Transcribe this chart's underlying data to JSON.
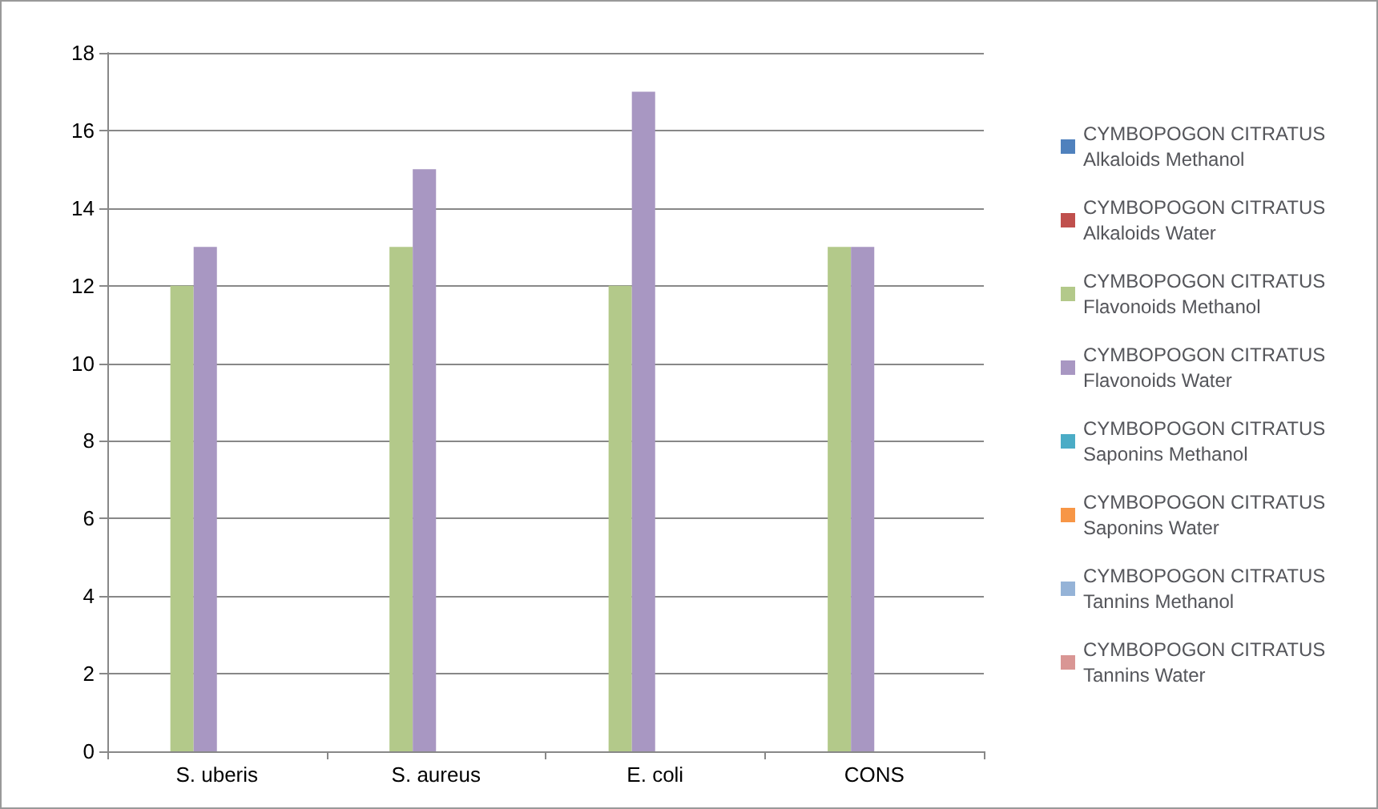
{
  "chart_data": {
    "type": "bar",
    "categories": [
      "S. uberis",
      "S. aureus",
      "E. coli",
      "CONS"
    ],
    "series": [
      {
        "name": "CYMBOPOGON CITRATUS Alkaloids Methanol",
        "color": "#4f81bd",
        "values": [
          0,
          0,
          0,
          0
        ]
      },
      {
        "name": "CYMBOPOGON CITRATUS Alkaloids Water",
        "color": "#c0504d",
        "values": [
          0,
          0,
          0,
          0
        ]
      },
      {
        "name": "CYMBOPOGON CITRATUS Flavonoids Methanol",
        "color": "#b3c98a",
        "values": [
          12,
          13,
          12,
          13
        ]
      },
      {
        "name": "CYMBOPOGON CITRATUS Flavonoids Water",
        "color": "#a897c2",
        "values": [
          13,
          15,
          17,
          13
        ]
      },
      {
        "name": "CYMBOPOGON CITRATUS Saponins Methanol",
        "color": "#4bacc6",
        "values": [
          0,
          0,
          0,
          0
        ]
      },
      {
        "name": "CYMBOPOGON CITRATUS Saponins Water",
        "color": "#f79646",
        "values": [
          0,
          0,
          0,
          0
        ]
      },
      {
        "name": "CYMBOPOGON CITRATUS Tannins Methanol",
        "color": "#95b3d7",
        "values": [
          0,
          0,
          0,
          0
        ]
      },
      {
        "name": "CYMBOPOGON CITRATUS Tannins Water",
        "color": "#d99694",
        "values": [
          0,
          0,
          0,
          0
        ]
      }
    ],
    "ylim": [
      0,
      18
    ],
    "yticks": [
      0,
      2,
      4,
      6,
      8,
      10,
      12,
      14,
      16,
      18
    ],
    "grid": "y",
    "legend": "right"
  }
}
